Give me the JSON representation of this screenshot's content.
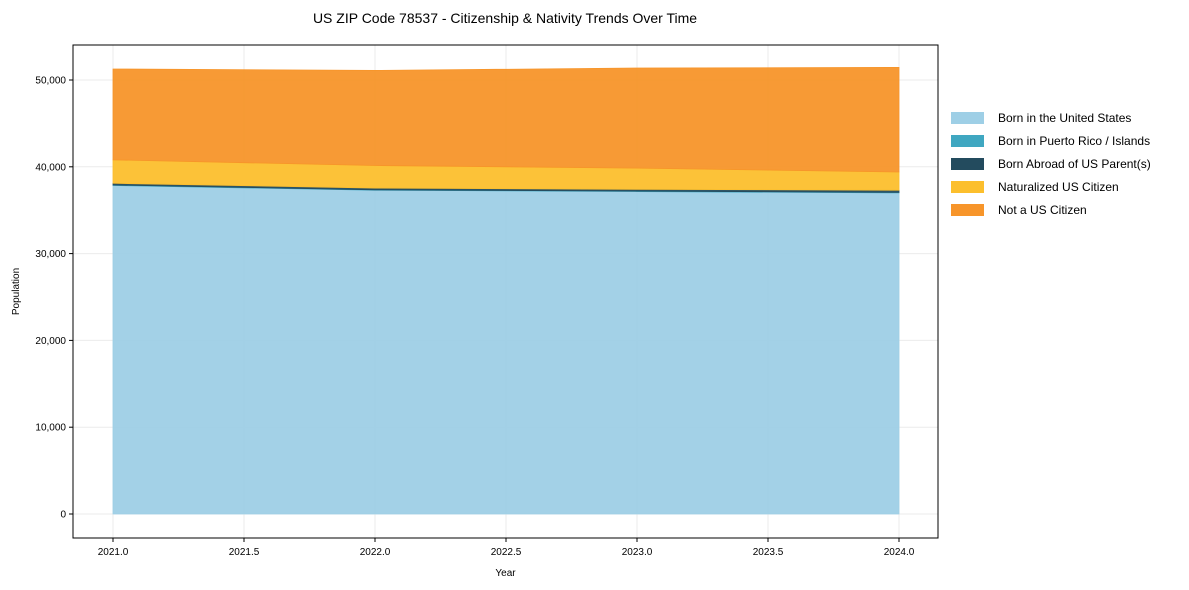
{
  "chart_data": {
    "type": "area",
    "stacked": true,
    "title": "US ZIP Code 78537 - Citizenship & Nativity Trends Over Time",
    "xlabel": "Year",
    "ylabel": "Population",
    "x": [
      2021,
      2022,
      2023,
      2024
    ],
    "xticks": [
      "2021.0",
      "2021.5",
      "2022.0",
      "2022.5",
      "2023.0",
      "2023.5",
      "2024.0"
    ],
    "yticks": [
      "0",
      "10,000",
      "20,000",
      "30,000",
      "40,000",
      "50,000"
    ],
    "ylim": [
      -2600,
      54200
    ],
    "xlim": [
      2020.85,
      2024.15
    ],
    "grid": true,
    "legend_position": "right",
    "series": [
      {
        "name": "Born in the United States",
        "color": "#9ecfe6",
        "values": [
          37850,
          37300,
          37150,
          37000
        ]
      },
      {
        "name": "Born in Puerto Rico / Islands",
        "color": "#3fa7c1",
        "values": [
          50,
          50,
          50,
          50
        ]
      },
      {
        "name": "Born Abroad of US Parent(s)",
        "color": "#234b5e",
        "values": [
          200,
          200,
          200,
          250
        ]
      },
      {
        "name": "Naturalized US Citizen",
        "color": "#fcbf2d",
        "values": [
          2700,
          2600,
          2450,
          2100
        ]
      },
      {
        "name": "Not a US Citizen",
        "color": "#f7952a",
        "values": [
          10470,
          10950,
          11530,
          12050
        ]
      }
    ]
  }
}
